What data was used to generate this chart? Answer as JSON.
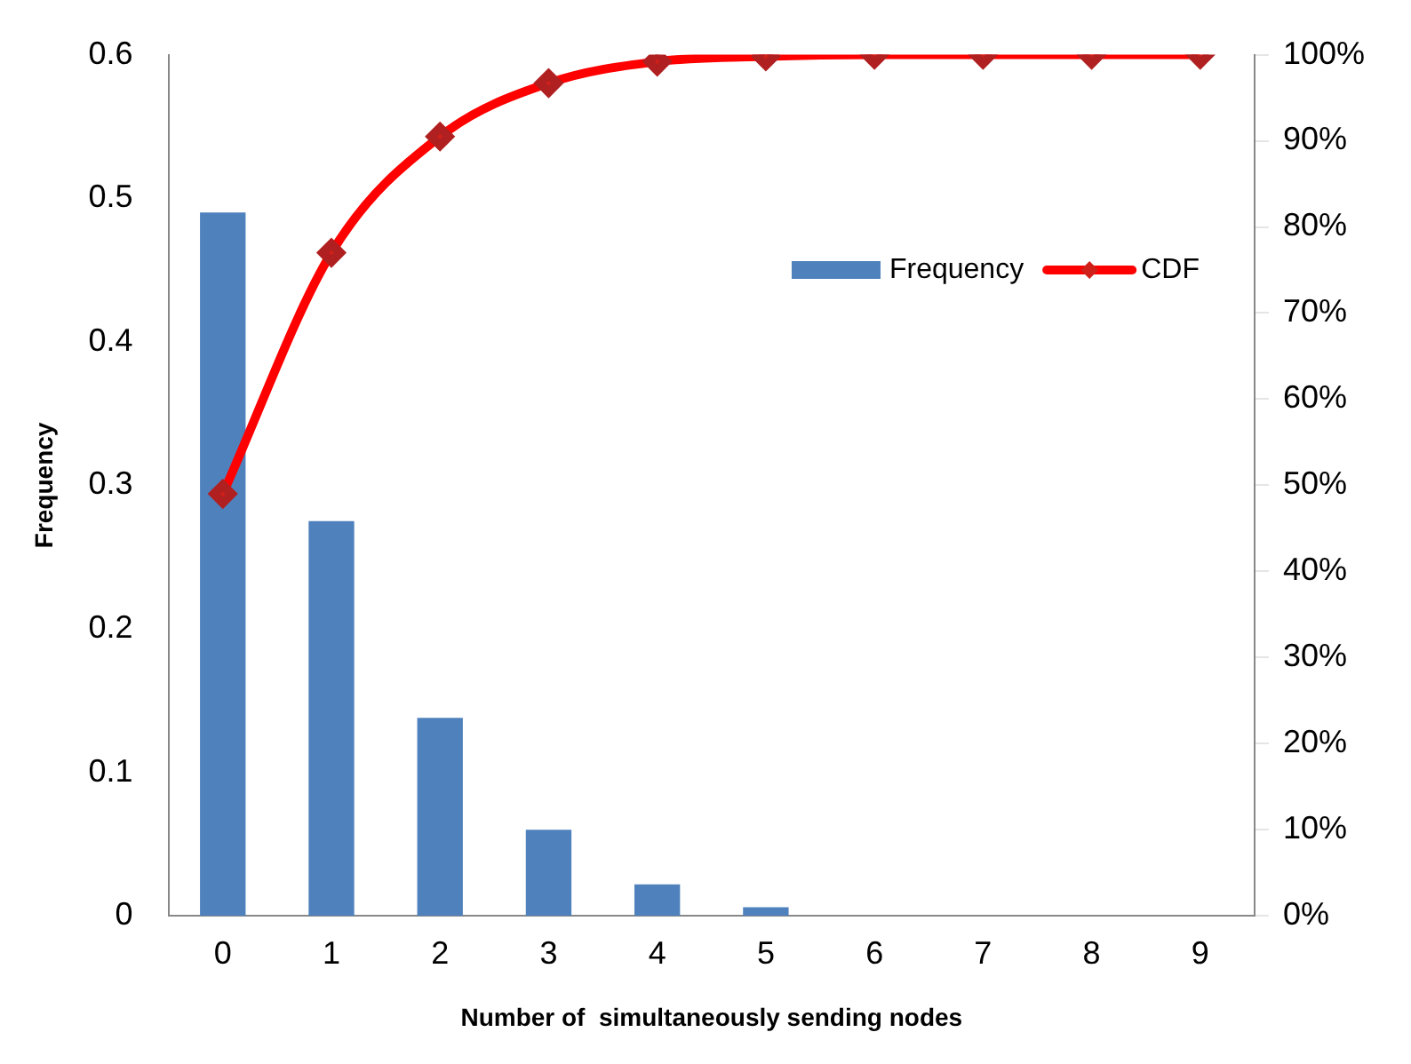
{
  "chart_data": {
    "type": "bar",
    "xlabel": "Number of  simultaneously sending nodes",
    "ylabel": "Frequency",
    "categories": [
      "0",
      "1",
      "2",
      "3",
      "4",
      "5",
      "6",
      "7",
      "8",
      "9"
    ],
    "series": [
      {
        "name": "Frequency",
        "color": "#4f81bd",
        "values": [
          0.49,
          0.275,
          0.138,
          0.06,
          0.022,
          0.006,
          0,
          0,
          0,
          0
        ]
      },
      {
        "name": "CDF",
        "type": "line",
        "axis": "y2",
        "color": "#ff0000",
        "marker": "diamond",
        "values": [
          49,
          77,
          90.5,
          96.7,
          99.2,
          99.8,
          100,
          100,
          100,
          100
        ]
      }
    ],
    "ylim": [
      0,
      0.6
    ],
    "yticks": [
      0,
      0.1,
      0.2,
      0.3,
      0.4,
      0.5,
      0.6
    ],
    "y2lim": [
      0,
      100
    ],
    "y2ticks": [
      {
        "value": 0,
        "label": "0%"
      },
      {
        "value": 10,
        "label": "10%"
      },
      {
        "value": 20,
        "label": "20%"
      },
      {
        "value": 30,
        "label": "30%"
      },
      {
        "value": 40,
        "label": "40%"
      },
      {
        "value": 50,
        "label": "50%"
      },
      {
        "value": 60,
        "label": "60%"
      },
      {
        "value": 70,
        "label": "70%"
      },
      {
        "value": 80,
        "label": "80%"
      },
      {
        "value": 90,
        "label": "90%"
      },
      {
        "value": 100,
        "label": "100%"
      }
    ],
    "grid": false,
    "legend": "top right"
  }
}
